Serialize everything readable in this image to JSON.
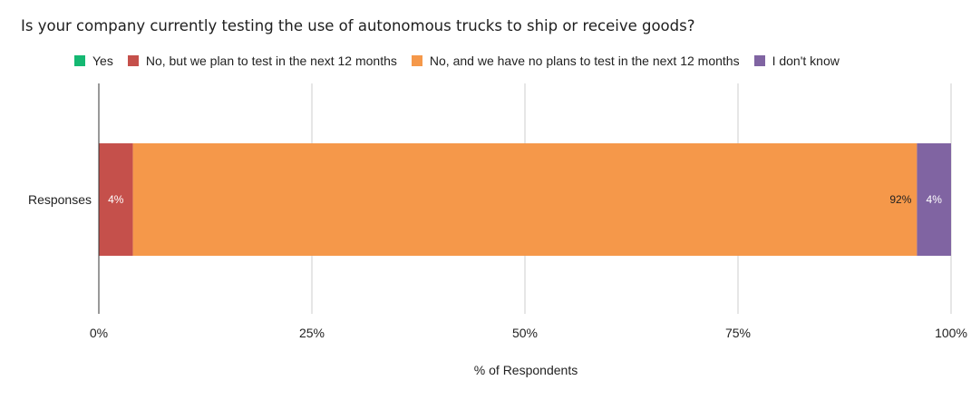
{
  "chart_data": {
    "type": "bar",
    "orientation": "horizontal",
    "stacked": true,
    "title": "Is your company currently testing the use of autonomous trucks to ship or receive goods?",
    "xlabel": "% of Respondents",
    "ylabel": "",
    "categories": [
      "Responses"
    ],
    "series": [
      {
        "name": "Yes",
        "values": [
          0
        ],
        "color": "#15b872",
        "label": ""
      },
      {
        "name": "No, but we plan to test in the next 12 months",
        "values": [
          4
        ],
        "color": "#c5504b",
        "label": "4%"
      },
      {
        "name": "No, and we have no plans to test in the next 12 months",
        "values": [
          92
        ],
        "color": "#f5984a",
        "label": "92%"
      },
      {
        "name": "I don't know",
        "values": [
          4
        ],
        "color": "#8064a2",
        "label": "4%"
      }
    ],
    "xlim": [
      0,
      100
    ],
    "xticks": [
      0,
      25,
      50,
      75,
      100
    ],
    "xtick_labels": [
      "0%",
      "25%",
      "50%",
      "75%",
      "100%"
    ],
    "grid": true,
    "legend_position": "top"
  }
}
